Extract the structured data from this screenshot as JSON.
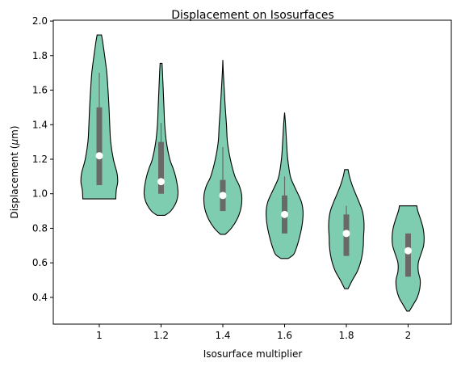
{
  "chart_data": {
    "type": "violin",
    "title": "Displacement on Isosurfaces",
    "xlabel": "Isosurface multiplier",
    "ylabel_prefix": "Displacement (",
    "ylabel_unit_symbol": "μ",
    "ylabel_suffix": "m)",
    "categories": [
      "1",
      "1.2",
      "1.4",
      "1.6",
      "1.8",
      "2"
    ],
    "ylim": [
      0.245,
      2.005
    ],
    "yticks": [
      0.4,
      0.6,
      0.8,
      1.0,
      1.2,
      1.4,
      1.6,
      1.8,
      2.0
    ],
    "ytick_labels": [
      "0.4",
      "0.6",
      "0.8",
      "1.0",
      "1.2",
      "1.4",
      "1.6",
      "1.8",
      "2.0"
    ],
    "colors": {
      "violin_fill": "#7fcdb1",
      "violin_edge": "#000000",
      "box": "#696969",
      "median": "#ffffff"
    },
    "violins": [
      {
        "label": "1",
        "min": 0.97,
        "max": 1.92,
        "q1": 1.05,
        "median": 1.22,
        "q3": 1.5,
        "whisker_low": 1.05,
        "whisker_high": 1.7,
        "profile": [
          [
            0.97,
            0.68
          ],
          [
            1.02,
            0.7
          ],
          [
            1.07,
            0.76
          ],
          [
            1.12,
            0.73
          ],
          [
            1.2,
            0.58
          ],
          [
            1.3,
            0.47
          ],
          [
            1.4,
            0.43
          ],
          [
            1.5,
            0.4
          ],
          [
            1.6,
            0.36
          ],
          [
            1.7,
            0.31
          ],
          [
            1.8,
            0.22
          ],
          [
            1.88,
            0.14
          ],
          [
            1.92,
            0.09
          ]
        ]
      },
      {
        "label": "1.2",
        "min": 0.875,
        "max": 1.755,
        "q1": 1.0,
        "median": 1.07,
        "q3": 1.3,
        "whisker_low": 1.0,
        "whisker_high": 1.41,
        "profile": [
          [
            0.875,
            0.16
          ],
          [
            0.9,
            0.4
          ],
          [
            0.95,
            0.62
          ],
          [
            1.0,
            0.7
          ],
          [
            1.05,
            0.67
          ],
          [
            1.1,
            0.6
          ],
          [
            1.15,
            0.49
          ],
          [
            1.2,
            0.36
          ],
          [
            1.3,
            0.22
          ],
          [
            1.4,
            0.15
          ],
          [
            1.5,
            0.12
          ],
          [
            1.6,
            0.09
          ],
          [
            1.7,
            0.06
          ],
          [
            1.755,
            0.04
          ]
        ]
      },
      {
        "label": "1.4",
        "min": 0.765,
        "max": 1.775,
        "q1": 0.9,
        "median": 0.99,
        "q3": 1.08,
        "whisker_low": 0.9,
        "whisker_high": 1.27,
        "profile": [
          [
            0.765,
            0.1
          ],
          [
            0.8,
            0.35
          ],
          [
            0.85,
            0.58
          ],
          [
            0.9,
            0.72
          ],
          [
            0.95,
            0.78
          ],
          [
            1.0,
            0.77
          ],
          [
            1.05,
            0.67
          ],
          [
            1.1,
            0.5
          ],
          [
            1.2,
            0.31
          ],
          [
            1.3,
            0.19
          ],
          [
            1.4,
            0.15
          ],
          [
            1.5,
            0.1
          ],
          [
            1.6,
            0.06
          ],
          [
            1.7,
            0.02
          ],
          [
            1.775,
            0.0
          ]
        ]
      },
      {
        "label": "1.6",
        "min": 0.625,
        "max": 1.47,
        "q1": 0.77,
        "median": 0.88,
        "q3": 0.99,
        "whisker_low": 0.77,
        "whisker_high": 1.1,
        "profile": [
          [
            0.625,
            0.15
          ],
          [
            0.65,
            0.38
          ],
          [
            0.7,
            0.52
          ],
          [
            0.75,
            0.62
          ],
          [
            0.8,
            0.7
          ],
          [
            0.85,
            0.75
          ],
          [
            0.9,
            0.76
          ],
          [
            0.95,
            0.7
          ],
          [
            1.0,
            0.55
          ],
          [
            1.05,
            0.38
          ],
          [
            1.1,
            0.24
          ],
          [
            1.2,
            0.13
          ],
          [
            1.3,
            0.08
          ],
          [
            1.4,
            0.04
          ],
          [
            1.47,
            0.0
          ]
        ]
      },
      {
        "label": "1.8",
        "min": 0.45,
        "max": 1.14,
        "q1": 0.64,
        "median": 0.77,
        "q3": 0.88,
        "whisker_low": 0.64,
        "whisker_high": 0.93,
        "profile": [
          [
            0.45,
            0.07
          ],
          [
            0.5,
            0.25
          ],
          [
            0.55,
            0.45
          ],
          [
            0.6,
            0.58
          ],
          [
            0.65,
            0.66
          ],
          [
            0.7,
            0.7
          ],
          [
            0.75,
            0.71
          ],
          [
            0.8,
            0.73
          ],
          [
            0.85,
            0.72
          ],
          [
            0.9,
            0.66
          ],
          [
            0.95,
            0.53
          ],
          [
            1.0,
            0.38
          ],
          [
            1.05,
            0.24
          ],
          [
            1.1,
            0.13
          ],
          [
            1.14,
            0.07
          ]
        ]
      },
      {
        "label": "2",
        "min": 0.32,
        "max": 0.93,
        "q1": 0.52,
        "median": 0.67,
        "q3": 0.77,
        "whisker_low": 0.52,
        "whisker_high": 0.77,
        "profile": [
          [
            0.32,
            0.05
          ],
          [
            0.36,
            0.22
          ],
          [
            0.4,
            0.38
          ],
          [
            0.45,
            0.48
          ],
          [
            0.5,
            0.5
          ],
          [
            0.55,
            0.42
          ],
          [
            0.6,
            0.42
          ],
          [
            0.65,
            0.53
          ],
          [
            0.7,
            0.64
          ],
          [
            0.75,
            0.66
          ],
          [
            0.8,
            0.62
          ],
          [
            0.85,
            0.52
          ],
          [
            0.9,
            0.4
          ],
          [
            0.93,
            0.36
          ]
        ]
      }
    ]
  }
}
